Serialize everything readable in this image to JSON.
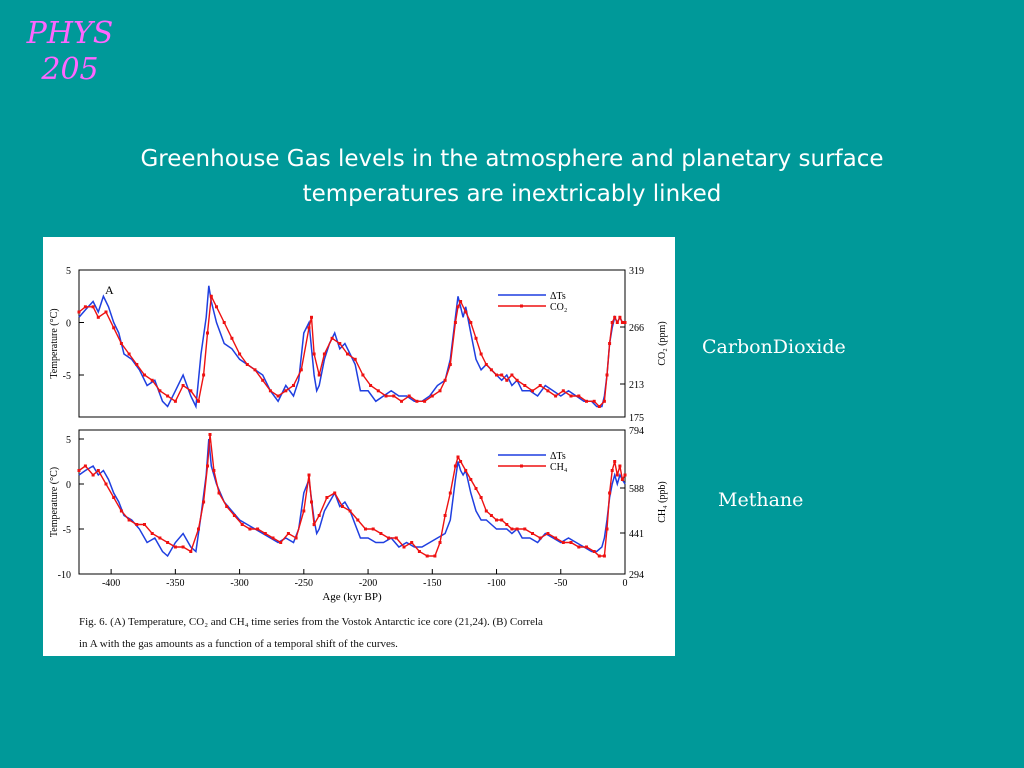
{
  "logo": {
    "line1": "PHYS",
    "line2": "205"
  },
  "slide_title": "Greenhouse Gas  levels in the atmosphere and planetary surface temperatures are inextricably linked",
  "labels": {
    "co2": "CarbonDioxide",
    "ch4": "Methane"
  },
  "colors": {
    "background": "#009999",
    "logo": "#ff66ff",
    "temperature_line": "#1f3fe0",
    "gas_line": "#ee1111"
  },
  "chart_data": [
    {
      "type": "line",
      "panel_label": "A",
      "ylabel": "Temperature (°C)",
      "ylim": [
        -9,
        5
      ],
      "yticks": [
        "5",
        "0",
        "-5"
      ],
      "y2label": "CO₂ (ppm)",
      "y2lim": [
        175,
        319
      ],
      "y2ticks": [
        "319",
        "266",
        "213",
        "175"
      ],
      "xlim": [
        -425,
        0
      ],
      "legend": "top-right",
      "series": [
        {
          "name": "ΔTs",
          "color": "#1f3fe0",
          "x": [
            -425,
            -420,
            -414,
            -410,
            -406,
            -402,
            -398,
            -394,
            -390,
            -384,
            -378,
            -372,
            -366,
            -360,
            -356,
            -350,
            -344,
            -338,
            -334,
            -330,
            -326,
            -324,
            -322,
            -318,
            -312,
            -306,
            -300,
            -294,
            -288,
            -282,
            -276,
            -270,
            -264,
            -258,
            -254,
            -250,
            -246,
            -242,
            -240,
            -238,
            -234,
            -230,
            -226,
            -222,
            -218,
            -214,
            -210,
            -206,
            -200,
            -194,
            -188,
            -182,
            -176,
            -170,
            -164,
            -158,
            -152,
            -146,
            -140,
            -136,
            -132,
            -130,
            -128,
            -126,
            -124,
            -120,
            -116,
            -112,
            -108,
            -104,
            -100,
            -96,
            -92,
            -88,
            -84,
            -80,
            -74,
            -68,
            -62,
            -56,
            -50,
            -44,
            -38,
            -32,
            -26,
            -22,
            -18,
            -16,
            -14,
            -12,
            -10,
            -8,
            -6,
            -4,
            -2,
            0
          ],
          "y": [
            0.5,
            1.2,
            2.0,
            1.0,
            2.5,
            1.5,
            0.0,
            -1.0,
            -3.0,
            -3.5,
            -4.5,
            -6.0,
            -5.5,
            -7.5,
            -8.0,
            -6.5,
            -5.0,
            -7.0,
            -8.0,
            -3.0,
            0.5,
            3.5,
            2.0,
            0.0,
            -2.0,
            -2.5,
            -3.5,
            -4.0,
            -4.5,
            -5.0,
            -6.5,
            -7.5,
            -6.0,
            -7.0,
            -5.5,
            -1.0,
            0.0,
            -5.0,
            -6.5,
            -6.0,
            -3.5,
            -2.0,
            -1.0,
            -2.5,
            -2.0,
            -3.0,
            -4.0,
            -6.5,
            -6.5,
            -7.5,
            -7.0,
            -6.5,
            -7.0,
            -7.0,
            -7.5,
            -7.5,
            -7.0,
            -6.0,
            -5.5,
            -3.5,
            0.5,
            2.5,
            1.5,
            0.5,
            1.5,
            -1.0,
            -3.5,
            -4.5,
            -4.0,
            -4.5,
            -5.0,
            -5.5,
            -5.0,
            -6.0,
            -5.5,
            -6.5,
            -6.5,
            -7.0,
            -6.0,
            -6.5,
            -7.0,
            -6.5,
            -7.0,
            -7.5,
            -7.5,
            -8.0,
            -8.0,
            -7.0,
            -5.0,
            -2.0,
            -0.5,
            0.5,
            0.0,
            0.5,
            0.0,
            0.0
          ]
        },
        {
          "name": "CO₂",
          "color": "#ee1111",
          "x": [
            -425,
            -420,
            -414,
            -410,
            -404,
            -398,
            -392,
            -386,
            -380,
            -374,
            -368,
            -362,
            -356,
            -350,
            -344,
            -338,
            -332,
            -328,
            -325,
            -322,
            -318,
            -312,
            -306,
            -300,
            -294,
            -288,
            -282,
            -276,
            -270,
            -264,
            -258,
            -252,
            -246,
            -244,
            -242,
            -238,
            -234,
            -228,
            -222,
            -216,
            -210,
            -204,
            -198,
            -192,
            -186,
            -180,
            -174,
            -168,
            -162,
            -156,
            -150,
            -144,
            -140,
            -136,
            -132,
            -130,
            -128,
            -124,
            -120,
            -116,
            -112,
            -108,
            -104,
            -100,
            -96,
            -92,
            -88,
            -84,
            -78,
            -72,
            -66,
            -60,
            -54,
            -48,
            -42,
            -36,
            -30,
            -24,
            -20,
            -16,
            -14,
            -12,
            -10,
            -8,
            -6,
            -4,
            -2,
            0
          ],
          "y": [
            1.0,
            1.5,
            1.5,
            0.5,
            1.0,
            -0.5,
            -2.0,
            -3.0,
            -4.0,
            -5.0,
            -5.5,
            -6.5,
            -7.0,
            -7.5,
            -6.0,
            -6.5,
            -7.5,
            -5.0,
            -1.0,
            2.5,
            1.5,
            0.0,
            -1.5,
            -3.0,
            -4.0,
            -4.5,
            -5.5,
            -6.5,
            -7.0,
            -6.5,
            -6.0,
            -4.5,
            -0.5,
            0.5,
            -3.0,
            -5.0,
            -3.0,
            -1.5,
            -2.0,
            -3.0,
            -3.5,
            -5.0,
            -6.0,
            -6.5,
            -7.0,
            -7.0,
            -7.5,
            -7.0,
            -7.5,
            -7.5,
            -7.0,
            -6.5,
            -5.5,
            -4.0,
            0.0,
            1.5,
            2.0,
            1.0,
            0.0,
            -1.5,
            -3.0,
            -4.0,
            -4.5,
            -5.0,
            -5.0,
            -5.5,
            -5.0,
            -5.5,
            -6.0,
            -6.5,
            -6.0,
            -6.5,
            -7.0,
            -6.5,
            -7.0,
            -7.0,
            -7.5,
            -7.5,
            -8.0,
            -7.5,
            -5.0,
            -2.0,
            0.0,
            0.5,
            0.0,
            0.5,
            0.0,
            0.0
          ]
        }
      ]
    },
    {
      "type": "line",
      "ylabel": "Temperature (°C)",
      "ylim": [
        -10,
        6
      ],
      "yticks": [
        "5",
        "0",
        "-5",
        "-10"
      ],
      "y2label": "CH₄ (ppb)",
      "y2lim": [
        294,
        794
      ],
      "y2ticks": [
        "794",
        "588",
        "441",
        "294"
      ],
      "xlabel": "Age (kyr BP)",
      "xlim": [
        -425,
        0
      ],
      "xticks": [
        -400,
        -350,
        -300,
        -250,
        -200,
        -150,
        -100,
        -50,
        0
      ],
      "xticklabels": [
        "-400",
        "-350",
        "-300",
        "-250",
        "-200",
        "-150",
        "-100",
        "-50",
        "0"
      ],
      "legend": "top-right",
      "series": [
        {
          "name": "ΔTs",
          "color": "#1f3fe0",
          "x": [
            -425,
            -420,
            -414,
            -410,
            -406,
            -402,
            -398,
            -394,
            -390,
            -384,
            -378,
            -372,
            -366,
            -360,
            -356,
            -350,
            -344,
            -338,
            -334,
            -330,
            -326,
            -324,
            -322,
            -318,
            -312,
            -306,
            -300,
            -294,
            -288,
            -282,
            -276,
            -270,
            -264,
            -258,
            -254,
            -250,
            -246,
            -242,
            -240,
            -238,
            -234,
            -230,
            -226,
            -222,
            -218,
            -214,
            -210,
            -206,
            -200,
            -194,
            -188,
            -182,
            -176,
            -170,
            -164,
            -158,
            -152,
            -146,
            -140,
            -136,
            -132,
            -130,
            -128,
            -126,
            -124,
            -120,
            -116,
            -112,
            -108,
            -104,
            -100,
            -96,
            -92,
            -88,
            -84,
            -80,
            -74,
            -68,
            -62,
            -56,
            -50,
            -44,
            -38,
            -32,
            -26,
            -22,
            -18,
            -16,
            -14,
            -12,
            -10,
            -8,
            -6,
            -4,
            -2,
            0
          ],
          "y": [
            1.0,
            1.5,
            2.0,
            1.0,
            1.5,
            0.5,
            -1.0,
            -2.0,
            -3.5,
            -4.0,
            -5.0,
            -6.5,
            -6.0,
            -7.5,
            -8.0,
            -6.5,
            -5.5,
            -7.0,
            -7.5,
            -3.5,
            1.0,
            5.0,
            2.0,
            0.0,
            -2.0,
            -3.0,
            -4.0,
            -4.5,
            -5.0,
            -5.5,
            -6.0,
            -6.5,
            -6.0,
            -6.5,
            -5.0,
            -1.0,
            0.5,
            -4.0,
            -5.5,
            -5.0,
            -3.0,
            -2.0,
            -1.0,
            -2.5,
            -2.0,
            -3.0,
            -4.5,
            -6.0,
            -6.0,
            -6.5,
            -6.5,
            -6.0,
            -7.0,
            -6.5,
            -7.0,
            -7.0,
            -6.5,
            -6.0,
            -5.5,
            -4.0,
            0.5,
            2.5,
            1.5,
            1.0,
            1.5,
            -1.0,
            -3.0,
            -4.0,
            -4.0,
            -4.5,
            -5.0,
            -5.0,
            -5.0,
            -5.5,
            -5.0,
            -6.0,
            -6.0,
            -6.5,
            -5.5,
            -6.0,
            -6.5,
            -6.0,
            -6.5,
            -7.0,
            -7.5,
            -7.5,
            -7.0,
            -6.0,
            -4.0,
            -1.5,
            0.0,
            1.0,
            0.0,
            1.0,
            0.5,
            0.0
          ]
        },
        {
          "name": "CH₄",
          "color": "#ee1111",
          "x": [
            -425,
            -420,
            -414,
            -410,
            -404,
            -398,
            -392,
            -386,
            -380,
            -374,
            -368,
            -362,
            -356,
            -350,
            -344,
            -338,
            -332,
            -328,
            -325,
            -323,
            -320,
            -316,
            -310,
            -304,
            -298,
            -292,
            -286,
            -280,
            -274,
            -268,
            -262,
            -256,
            -250,
            -246,
            -244,
            -242,
            -238,
            -232,
            -226,
            -220,
            -214,
            -208,
            -202,
            -196,
            -190,
            -184,
            -178,
            -172,
            -166,
            -160,
            -154,
            -148,
            -144,
            -140,
            -136,
            -132,
            -130,
            -128,
            -124,
            -120,
            -116,
            -112,
            -108,
            -104,
            -100,
            -96,
            -92,
            -88,
            -84,
            -78,
            -72,
            -66,
            -60,
            -54,
            -48,
            -42,
            -36,
            -30,
            -24,
            -20,
            -16,
            -14,
            -12,
            -10,
            -8,
            -6,
            -4,
            -2,
            0
          ],
          "y": [
            1.5,
            2.0,
            1.0,
            1.5,
            0.0,
            -1.5,
            -3.0,
            -4.0,
            -4.5,
            -4.5,
            -5.5,
            -6.0,
            -6.5,
            -7.0,
            -7.0,
            -7.5,
            -5.0,
            -2.0,
            2.0,
            5.5,
            1.5,
            -1.0,
            -2.5,
            -3.5,
            -4.5,
            -5.0,
            -5.0,
            -5.5,
            -6.0,
            -6.5,
            -5.5,
            -6.0,
            -3.0,
            1.0,
            -2.0,
            -4.5,
            -3.5,
            -1.5,
            -1.0,
            -2.5,
            -3.0,
            -4.0,
            -5.0,
            -5.0,
            -5.5,
            -6.0,
            -6.0,
            -7.0,
            -6.5,
            -7.5,
            -8.0,
            -8.0,
            -6.5,
            -3.5,
            -1.0,
            2.0,
            3.0,
            2.5,
            1.5,
            0.5,
            -0.5,
            -1.5,
            -3.0,
            -3.5,
            -4.0,
            -4.0,
            -4.5,
            -5.0,
            -5.0,
            -5.0,
            -5.5,
            -6.0,
            -5.5,
            -6.0,
            -6.5,
            -6.5,
            -7.0,
            -7.0,
            -7.5,
            -8.0,
            -8.0,
            -5.0,
            -1.0,
            1.5,
            2.5,
            1.0,
            2.0,
            0.5,
            1.0
          ]
        }
      ]
    }
  ],
  "caption": {
    "line1": "Fig. 6. (A) Temperature, CO₂ and CH₄ time series from the Vostok Antarctic ice core (21,24). (B) Correla",
    "line2": "in A with the gas amounts as a function of a temporal shift of the curves."
  }
}
